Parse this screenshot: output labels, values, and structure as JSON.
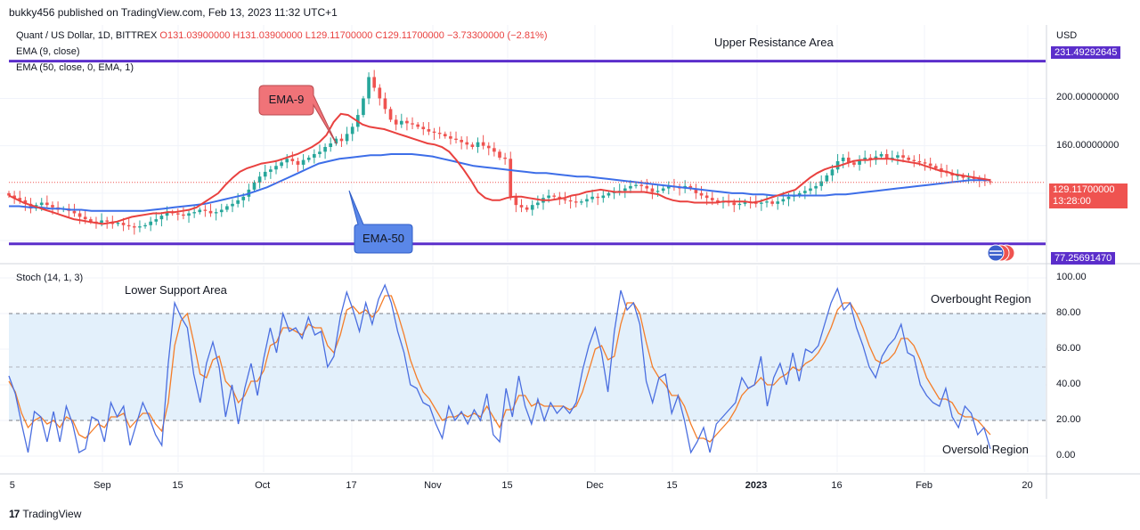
{
  "header": {
    "publisher_line": "bukky456 published on TradingView.com, Feb 13, 2023 11:32 UTC+1"
  },
  "legend": {
    "symbol": "Quant / US Dollar, 1D, BITTREX",
    "ohlc": "O131.03900000 H131.03900000 L129.11700000 C129.11700000 −3.73300000 (−2.81%)",
    "ema9": "EMA (9, close)",
    "ema50": "EMA (50, close, 0, EMA, 1)",
    "stoch": "Stoch (14, 1, 3)"
  },
  "axis": {
    "currency": "USD"
  },
  "annotations": {
    "upper_resistance": "Upper Resistance Area",
    "lower_support": "Lower Support Area",
    "overbought": "Overbought Region",
    "oversold": "Oversold Region",
    "ema9_callout": "EMA-9",
    "ema50_callout": "EMA-50"
  },
  "badges": {
    "upper_level": "231.49292645",
    "lower_level": "77.25691470",
    "last_price": "129.11700000",
    "countdown": "13:28:00"
  },
  "footer": {
    "brand": "TradingView"
  },
  "colors": {
    "up": "#26a69a",
    "down": "#ef5350",
    "ema9": "#e9413f",
    "ema50": "#3d6ee8",
    "level_line": "#5b2ecb",
    "stoch_k": "#4a6ee0",
    "stoch_d": "#f47d29",
    "band": "#e3f0fb"
  },
  "chart_data": [
    {
      "type": "candlestick",
      "title": "Quant / US Dollar, 1D, BITTREX",
      "ylabel": "USD",
      "y_ticks": [
        "200.00000000",
        "160.00000000"
      ],
      "x_ticks": [
        "5",
        "Sep",
        "15",
        "Oct",
        "17",
        "Nov",
        "15",
        "Dec",
        "15",
        "2023",
        "16",
        "Feb",
        "20"
      ],
      "ylim": [
        62,
        262
      ],
      "horizontal_levels": [
        {
          "name": "Upper Resistance Area",
          "value": 231.49292645
        },
        {
          "name": "Lower Support Area",
          "value": 77.2569147
        }
      ],
      "last_price": 129.117,
      "close": [
        118,
        116,
        114,
        111,
        107,
        110,
        112,
        110,
        108,
        106,
        107,
        105,
        103,
        100,
        98,
        96,
        95,
        97,
        96,
        94,
        95,
        93,
        92,
        91,
        92,
        93,
        96,
        98,
        101,
        104,
        103,
        102,
        101,
        103,
        104,
        106,
        105,
        103,
        104,
        106,
        109,
        111,
        114,
        117,
        123,
        129,
        134,
        138,
        140,
        143,
        146,
        149,
        147,
        144,
        148,
        150,
        153,
        155,
        159,
        162,
        166,
        164,
        170,
        176,
        186,
        200,
        218,
        209,
        200,
        191,
        182,
        178,
        181,
        179,
        178,
        176,
        174,
        172,
        171,
        170,
        168,
        166,
        165,
        163,
        161,
        159,
        163,
        160,
        158,
        155,
        150,
        149,
        117,
        110,
        108,
        106,
        110,
        112,
        116,
        118,
        117,
        115,
        114,
        113,
        112,
        113,
        115,
        117,
        116,
        118,
        120,
        121,
        122,
        124,
        126,
        127,
        126,
        124,
        121,
        122,
        124,
        126,
        125,
        124,
        126,
        124,
        120,
        118,
        116,
        114,
        112,
        113,
        112,
        110,
        111,
        113,
        112,
        111,
        112,
        113,
        111,
        113,
        115,
        117,
        118,
        120,
        122,
        124,
        126,
        130,
        135,
        140,
        147,
        150,
        146,
        144,
        148,
        150,
        148,
        151,
        153,
        149,
        150,
        152,
        150,
        148,
        147,
        146,
        145,
        143,
        141,
        138,
        137,
        135,
        135,
        133,
        133,
        132,
        131,
        130,
        129.117
      ],
      "ema9_approx": [
        118,
        115,
        112,
        110,
        108,
        106,
        104,
        102,
        100,
        98,
        97,
        96,
        95,
        94,
        95,
        96,
        98,
        100,
        101,
        102,
        103,
        103,
        104,
        104,
        105,
        106,
        108,
        112,
        116,
        120,
        127,
        133,
        138,
        141,
        143,
        145,
        146,
        147,
        149,
        151,
        153,
        156,
        159,
        163,
        169,
        180,
        187,
        186,
        182,
        178,
        176,
        175,
        174,
        172,
        170,
        168,
        166,
        164,
        162,
        161,
        159,
        155,
        148,
        140,
        131,
        121,
        116,
        114,
        114,
        116,
        117,
        117,
        116,
        115,
        114,
        114,
        115,
        116,
        118,
        119,
        121,
        122,
        123,
        122,
        121,
        121,
        121,
        121,
        121,
        120,
        119,
        116,
        114,
        113,
        113,
        112,
        112,
        112,
        112,
        113,
        113,
        113,
        113,
        112,
        113,
        115,
        117,
        119,
        121,
        123,
        128,
        133,
        137,
        140,
        142,
        143,
        145,
        147,
        148,
        148,
        149,
        149,
        149,
        148,
        147,
        146,
        145,
        143,
        141,
        139,
        138,
        136,
        135,
        134,
        133,
        132,
        131
      ],
      "ema50_approx": [
        109,
        109,
        108,
        108,
        107,
        107,
        106,
        106,
        105,
        105,
        105,
        105,
        105,
        105,
        106,
        107,
        108,
        109,
        110,
        111,
        113,
        115,
        117,
        119,
        122,
        125,
        129,
        133,
        137,
        141,
        145,
        147,
        149,
        150,
        151,
        152,
        152,
        153,
        153,
        153,
        152,
        151,
        149,
        147,
        145,
        143,
        142,
        141,
        140,
        139,
        138,
        137,
        137,
        136,
        135,
        134,
        134,
        133,
        132,
        131,
        130,
        129,
        128,
        127,
        126,
        125,
        124,
        123,
        122,
        121,
        120,
        120,
        119,
        119,
        118,
        118,
        118,
        118,
        118,
        118,
        119,
        119,
        120,
        121,
        122,
        123,
        124,
        125,
        126,
        127,
        128,
        129,
        130,
        131,
        131,
        131
      ]
    },
    {
      "type": "line",
      "title": "Stoch (14, 1, 3)",
      "ylim": [
        0,
        100
      ],
      "y_ticks": [
        "100.00",
        "80.00",
        "60.00",
        "40.00",
        "20.00",
        "0.00"
      ],
      "bands": [
        20,
        50,
        80
      ],
      "series": [
        {
          "name": "%K",
          "values": [
            45,
            35,
            18,
            2,
            25,
            22,
            8,
            25,
            8,
            28,
            18,
            2,
            4,
            22,
            20,
            8,
            30,
            22,
            28,
            6,
            18,
            30,
            22,
            12,
            6,
            52,
            86,
            78,
            72,
            46,
            30,
            52,
            64,
            50,
            22,
            40,
            18,
            38,
            52,
            34,
            55,
            72,
            58,
            80,
            70,
            72,
            66,
            78,
            68,
            70,
            50,
            56,
            78,
            92,
            82,
            70,
            86,
            74,
            88,
            96,
            86,
            70,
            58,
            40,
            38,
            30,
            28,
            18,
            10,
            28,
            20,
            25,
            18,
            26,
            20,
            35,
            12,
            8,
            38,
            22,
            45,
            28,
            18,
            32,
            20,
            30,
            24,
            28,
            24,
            30,
            48,
            62,
            72,
            58,
            36,
            70,
            93,
            82,
            86,
            74,
            42,
            30,
            44,
            46,
            24,
            34,
            20,
            2,
            8,
            16,
            2,
            18,
            22,
            26,
            30,
            44,
            38,
            40,
            56,
            28,
            44,
            52,
            40,
            58,
            42,
            60,
            58,
            62,
            74,
            86,
            94,
            82,
            86,
            72,
            62,
            50,
            44,
            56,
            62,
            66,
            74,
            58,
            56,
            40,
            34,
            30,
            28,
            38,
            22,
            16,
            28,
            24,
            12,
            16,
            4
          ]
        },
        {
          "name": "%D",
          "values": [
            42,
            36,
            24,
            16,
            20,
            22,
            18,
            20,
            16,
            22,
            20,
            12,
            10,
            14,
            18,
            16,
            22,
            22,
            24,
            16,
            20,
            24,
            24,
            18,
            14,
            30,
            62,
            76,
            80,
            64,
            46,
            44,
            54,
            56,
            42,
            38,
            30,
            34,
            42,
            42,
            48,
            62,
            64,
            72,
            72,
            70,
            68,
            74,
            72,
            72,
            62,
            58,
            68,
            82,
            84,
            80,
            82,
            78,
            82,
            90,
            90,
            80,
            68,
            54,
            44,
            36,
            32,
            26,
            20,
            22,
            22,
            24,
            22,
            24,
            22,
            28,
            22,
            16,
            26,
            26,
            34,
            34,
            28,
            30,
            28,
            28,
            28,
            28,
            26,
            28,
            36,
            48,
            60,
            62,
            54,
            56,
            74,
            86,
            86,
            80,
            64,
            50,
            44,
            40,
            34,
            34,
            28,
            18,
            10,
            10,
            8,
            12,
            16,
            20,
            26,
            34,
            38,
            40,
            44,
            40,
            40,
            44,
            46,
            50,
            48,
            52,
            54,
            58,
            64,
            72,
            82,
            86,
            86,
            80,
            72,
            62,
            54,
            52,
            54,
            58,
            66,
            66,
            62,
            54,
            44,
            38,
            32,
            32,
            30,
            24,
            22,
            22,
            20,
            16,
            12
          ]
        }
      ]
    }
  ]
}
